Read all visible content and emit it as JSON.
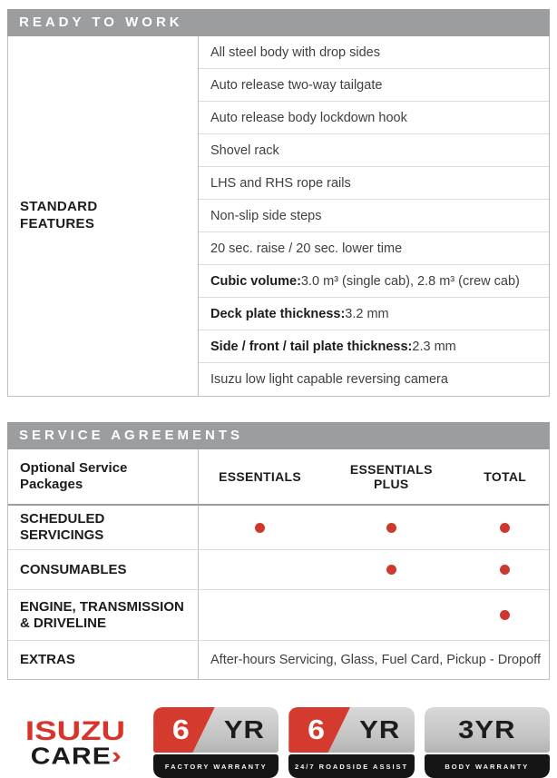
{
  "colors": {
    "header_bar": "#9c9d9f",
    "brand_red": "#d9342b",
    "dot_red": "#cf382c",
    "badge_black": "#151515",
    "badge_silver": "#c8c8c8"
  },
  "ready_to_work": {
    "title": "READY TO WORK",
    "row_label": "STANDARD\nFEATURES",
    "features": [
      {
        "bold": "",
        "text": "All steel body with drop sides"
      },
      {
        "bold": "",
        "text": "Auto release two-way tailgate"
      },
      {
        "bold": "",
        "text": "Auto release body lockdown hook"
      },
      {
        "bold": "",
        "text": "Shovel rack"
      },
      {
        "bold": "",
        "text": "LHS and RHS rope rails"
      },
      {
        "bold": "",
        "text": "Non-slip side steps"
      },
      {
        "bold": "",
        "text": "20 sec. raise / 20 sec. lower time"
      },
      {
        "bold": "Cubic volume:",
        "text": " 3.0 m³ (single cab), 2.8 m³ (crew cab)"
      },
      {
        "bold": "Deck plate thickness:",
        "text": " 3.2 mm"
      },
      {
        "bold": "Side / front / tail plate thickness:",
        "text": " 2.3 mm"
      },
      {
        "bold": "",
        "text": "Isuzu low light capable reversing camera"
      }
    ]
  },
  "service_agreements": {
    "title": "SERVICE AGREEMENTS",
    "left_header": "Optional Service Packages",
    "columns": [
      "ESSENTIALS",
      "ESSENTIALS PLUS",
      "TOTAL"
    ],
    "rows": [
      {
        "label": "SCHEDULED SERVICINGS",
        "dots": [
          true,
          true,
          true
        ]
      },
      {
        "label": "CONSUMABLES",
        "dots": [
          false,
          true,
          true
        ]
      },
      {
        "label": "ENGINE, TRANSMISSION & DRIVELINE",
        "dots": [
          false,
          false,
          true
        ]
      }
    ],
    "extras": {
      "label": "EXTRAS",
      "value": "After-hours Servicing, Glass, Fuel Card, Pickup - Dropoff"
    }
  },
  "footer": {
    "isuzu_care": {
      "line1": "ISUZU",
      "line2": "CARE",
      "arrow": "›"
    },
    "badges": [
      {
        "num": "6",
        "yr": "YR",
        "caption": "FACTORY WARRANTY"
      },
      {
        "num": "6",
        "yr": "YR",
        "caption": "24/7 ROADSIDE ASSIST"
      },
      {
        "num": "3",
        "yr": "YR",
        "caption": "BODY WARRANTY"
      }
    ]
  }
}
